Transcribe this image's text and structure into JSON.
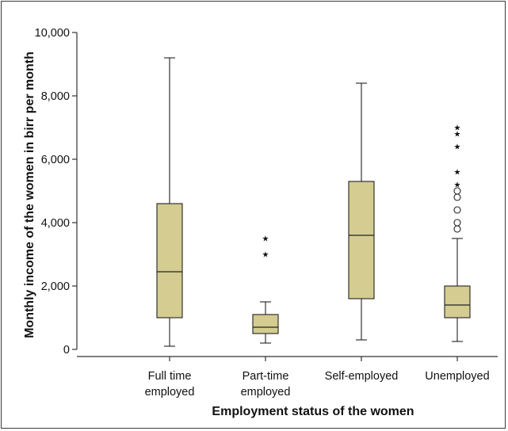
{
  "chart_data": {
    "type": "boxplot",
    "title": "",
    "xlabel": "Employment status of the women",
    "ylabel": "Monthly income of the women in birr per month",
    "ylim": [
      0,
      10000
    ],
    "yticks": [
      0,
      2000,
      4000,
      6000,
      8000,
      10000
    ],
    "ytick_labels": [
      "0",
      "2,000",
      "4,000",
      "6,000",
      "8,000",
      "10,000"
    ],
    "box_color": "#d4cc90",
    "categories": [
      {
        "label_lines": [
          "Full time",
          "employed"
        ],
        "min": 100,
        "q1": 1000,
        "median": 2450,
        "q3": 4600,
        "max": 9200,
        "outliers": [],
        "extremes": []
      },
      {
        "label_lines": [
          "Part-time",
          "employed"
        ],
        "min": 200,
        "q1": 500,
        "median": 700,
        "q3": 1100,
        "max": 1500,
        "outliers": [],
        "extremes": [
          3000,
          3500
        ]
      },
      {
        "label_lines": [
          "Self-employed"
        ],
        "min": 300,
        "q1": 1600,
        "median": 3600,
        "q3": 5300,
        "max": 8400,
        "outliers": [],
        "extremes": []
      },
      {
        "label_lines": [
          "Unemployed"
        ],
        "min": 250,
        "q1": 1000,
        "median": 1400,
        "q3": 2000,
        "max": 3500,
        "outliers": [
          3800,
          4000,
          4400,
          4800,
          5000
        ],
        "extremes": [
          5200,
          5600,
          6400,
          6800,
          7000
        ]
      }
    ]
  }
}
